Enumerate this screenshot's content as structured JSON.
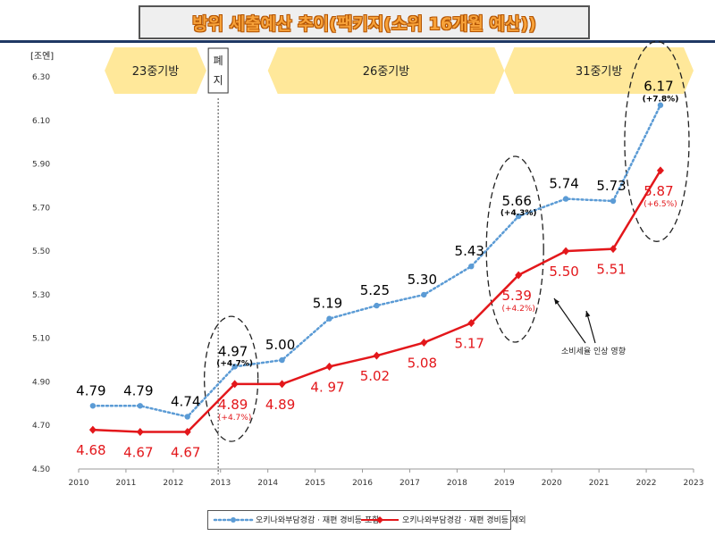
{
  "title": "방위 세출예산 추이(팩키지(소위 16개월 예산))",
  "unit": "[조엔]",
  "plans": [
    {
      "label": "23중기방",
      "from": 2010.55,
      "to": 2012.7
    },
    {
      "label": "26중기방",
      "from": 2014.0,
      "to": 2019.0
    },
    {
      "label": "31중기방",
      "from": 2019.0,
      "to": 2023.0
    }
  ],
  "abolished": {
    "chars": [
      "폐",
      "지"
    ],
    "x": 2012.95
  },
  "annotation": "소비세율 인상 영향",
  "chart_data": {
    "type": "line",
    "title": "방위 세출예산 추이(팩키지(소위 16개월 예산))",
    "xlabel": "",
    "ylabel": "[조엔]",
    "xlim": [
      2010,
      2023
    ],
    "ylim": [
      4.5,
      6.3
    ],
    "yticks": [
      "4.50",
      "4.70",
      "4.90",
      "5.10",
      "5.30",
      "5.50",
      "5.70",
      "5.90",
      "6.10",
      "6.30"
    ],
    "xticks": [
      "2010",
      "2011",
      "2012",
      "2013",
      "2014",
      "2015",
      "2016",
      "2017",
      "2018",
      "2019",
      "2020",
      "2021",
      "2022",
      "2023"
    ],
    "x": [
      2010.3,
      2011.3,
      2012.3,
      2013.3,
      2014.3,
      2015.3,
      2016.3,
      2017.3,
      2018.3,
      2019.3,
      2020.3,
      2021.3,
      2022.3
    ],
    "grid": false,
    "legend": "bottom",
    "series": [
      {
        "name": "오키나와부담경감 · 재편 경비등 포함",
        "color": "#5b9bd5",
        "style": "dotted",
        "values": [
          4.79,
          4.79,
          4.74,
          4.97,
          5.0,
          5.19,
          5.25,
          5.3,
          5.43,
          5.66,
          5.74,
          5.73,
          6.17
        ],
        "labels": [
          "4.79",
          "4.79",
          "4.74",
          "4.97",
          "5.00",
          "5.19",
          "5.25",
          "5.30",
          "5.43",
          "5.66",
          "5.74",
          "5.73",
          "6.17"
        ],
        "pct": {
          "3": "(+4.7%)",
          "9": "(+4.3%)",
          "12": "(+7.8%)"
        }
      },
      {
        "name": "오키나와부담경감 · 재편 경비등 제외",
        "color": "#e3171b",
        "style": "solid",
        "values": [
          4.68,
          4.67,
          4.67,
          4.89,
          4.89,
          4.97,
          5.02,
          5.08,
          5.17,
          5.39,
          5.5,
          5.51,
          5.87
        ],
        "labels": [
          "4.68",
          "4.67",
          "4.67",
          "4.89",
          "4.89",
          "4. 97",
          "5.02",
          "5.08",
          "5.17",
          "5.39",
          "5.50",
          "5.51",
          "5.87"
        ],
        "pct": {
          "3": "(+4.7%)",
          "9": "(+4.2%)",
          "12": "(+6.5%)"
        }
      }
    ]
  }
}
